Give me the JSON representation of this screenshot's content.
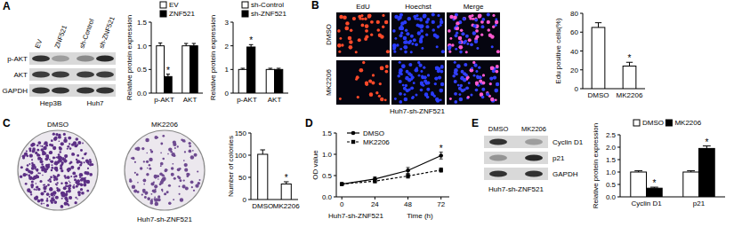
{
  "figure": {
    "panels": [
      "A",
      "B",
      "C",
      "D",
      "E"
    ],
    "A_blot": {
      "columns": [
        "EV",
        "ZNF521",
        "sh-Control",
        "sh-ZNF521"
      ],
      "rows": [
        "p-AKT",
        "AKT",
        "GAPDH"
      ],
      "cell_lines": [
        "Hep3B",
        "Huh7"
      ]
    },
    "B_images": {
      "columns": [
        "EdU",
        "Hoechst",
        "Merge"
      ],
      "rows": [
        "DMSO",
        "MK2206"
      ],
      "caption": "Huh7-sh-ZNF521"
    },
    "C_images": {
      "columns": [
        "DMSO",
        "MK2206"
      ],
      "caption": "Huh7-sh-ZNF521"
    },
    "E_blot": {
      "columns": [
        "DMSO",
        "MK2206"
      ],
      "rows": [
        "Cyclin D1",
        "p21",
        "GAPDH"
      ],
      "caption": "Huh7-sh-ZNF521"
    }
  },
  "chart_data": [
    {
      "type": "bar",
      "y_label": "Relative protein expression",
      "categories": [
        "p-AKT",
        "AKT"
      ],
      "series": [
        {
          "name": "EV",
          "color": "#ffffff",
          "values": [
            1.0,
            1.0
          ],
          "errors": [
            0.06,
            0.05
          ]
        },
        {
          "name": "ZNF521",
          "color": "#000000",
          "values": [
            0.35,
            1.0
          ],
          "errors": [
            0.05,
            0.05
          ],
          "significance": [
            "*",
            null
          ]
        }
      ],
      "ylim": [
        0,
        1.5
      ],
      "yticks": [
        {
          "value": 0,
          "label": "0.0"
        },
        {
          "value": 0.5,
          "label": "0.5"
        },
        {
          "value": 1,
          "label": "1.0"
        },
        {
          "value": 1.5,
          "label": "1.5"
        }
      ],
      "legend": "top"
    },
    {
      "type": "bar",
      "y_label": "Relative protein expression",
      "categories": [
        "p-AKT",
        "AKT"
      ],
      "series": [
        {
          "name": "sh-Control",
          "color": "#ffffff",
          "values": [
            1.0,
            1.0
          ],
          "errors": [
            0.05,
            0.05
          ]
        },
        {
          "name": "sh-ZNF521",
          "color": "#000000",
          "values": [
            1.95,
            1.0
          ],
          "errors": [
            0.1,
            0.05
          ],
          "significance": [
            "*",
            null
          ]
        }
      ],
      "ylim": [
        0,
        3
      ],
      "yticks": [
        0,
        1,
        2,
        3
      ],
      "legend": "top"
    },
    {
      "type": "bar",
      "y_label": "Edu positive cells(%)",
      "categories": [
        "DMSO",
        "MK2206"
      ],
      "series": [
        {
          "color": "#ffffff",
          "values": [
            65,
            24
          ],
          "errors": [
            5,
            4
          ],
          "significance": [
            null,
            "*"
          ]
        }
      ],
      "ylim": [
        0,
        80
      ],
      "yticks": [
        0,
        20,
        40,
        60,
        80
      ]
    },
    {
      "type": "bar",
      "y_label": "Number of colonies",
      "categories": [
        "DMSO",
        "MK2206"
      ],
      "series": [
        {
          "color": "#ffffff",
          "values": [
            102,
            35
          ],
          "errors": [
            10,
            5
          ],
          "significance": [
            null,
            "*"
          ]
        }
      ],
      "ylim": [
        0,
        150
      ],
      "yticks": [
        0,
        50,
        100,
        150
      ]
    },
    {
      "type": "line",
      "y_label": "OD value",
      "x_label": "Time (h)",
      "caption": "Huh7-sh-ZNF521",
      "x": [
        0,
        24,
        48,
        72
      ],
      "xlim": [
        -4,
        78
      ],
      "xticks": [
        0,
        24,
        48,
        72
      ],
      "ylim": [
        0,
        1.5
      ],
      "yticks": [
        {
          "value": 0,
          "label": "0.0"
        },
        {
          "value": 0.5,
          "label": "0.5"
        },
        {
          "value": 1,
          "label": "1.0"
        },
        {
          "value": 1.5,
          "label": "1.5"
        }
      ],
      "series": [
        {
          "name": "DMSO",
          "color": "#000000",
          "marker": "circle",
          "line_style": "solid",
          "values": [
            0.3,
            0.42,
            0.62,
            0.97
          ],
          "errors": [
            0.02,
            0.05,
            0.07,
            0.08
          ],
          "significance": [
            null,
            null,
            null,
            "*"
          ]
        },
        {
          "name": "MK2206",
          "color": "#000000",
          "marker": "square",
          "line_style": "dashed",
          "values": [
            0.3,
            0.37,
            0.49,
            0.63
          ],
          "errors": [
            0.02,
            0.04,
            0.05,
            0.05
          ]
        }
      ],
      "legend": "top"
    },
    {
      "type": "bar",
      "y_label": "Relative protein expression",
      "categories": [
        "Cyclin D1",
        "p21"
      ],
      "series": [
        {
          "name": "DMSO",
          "color": "#ffffff",
          "values": [
            1.0,
            1.0
          ],
          "errors": [
            0.05,
            0.05
          ]
        },
        {
          "name": "MK2206",
          "color": "#000000",
          "values": [
            0.35,
            1.95
          ],
          "errors": [
            0.04,
            0.1
          ],
          "significance": [
            "*",
            "*"
          ]
        }
      ],
      "ylim": [
        0,
        2.5
      ],
      "yticks": [
        {
          "value": 0,
          "label": "0.0"
        },
        {
          "value": 0.5,
          "label": "0.5"
        },
        {
          "value": 1,
          "label": "1.0"
        },
        {
          "value": 1.5,
          "label": "1.5"
        },
        {
          "value": 2,
          "label": "2.0"
        },
        {
          "value": 2.5,
          "label": "2.5"
        }
      ],
      "legend": "top"
    }
  ]
}
